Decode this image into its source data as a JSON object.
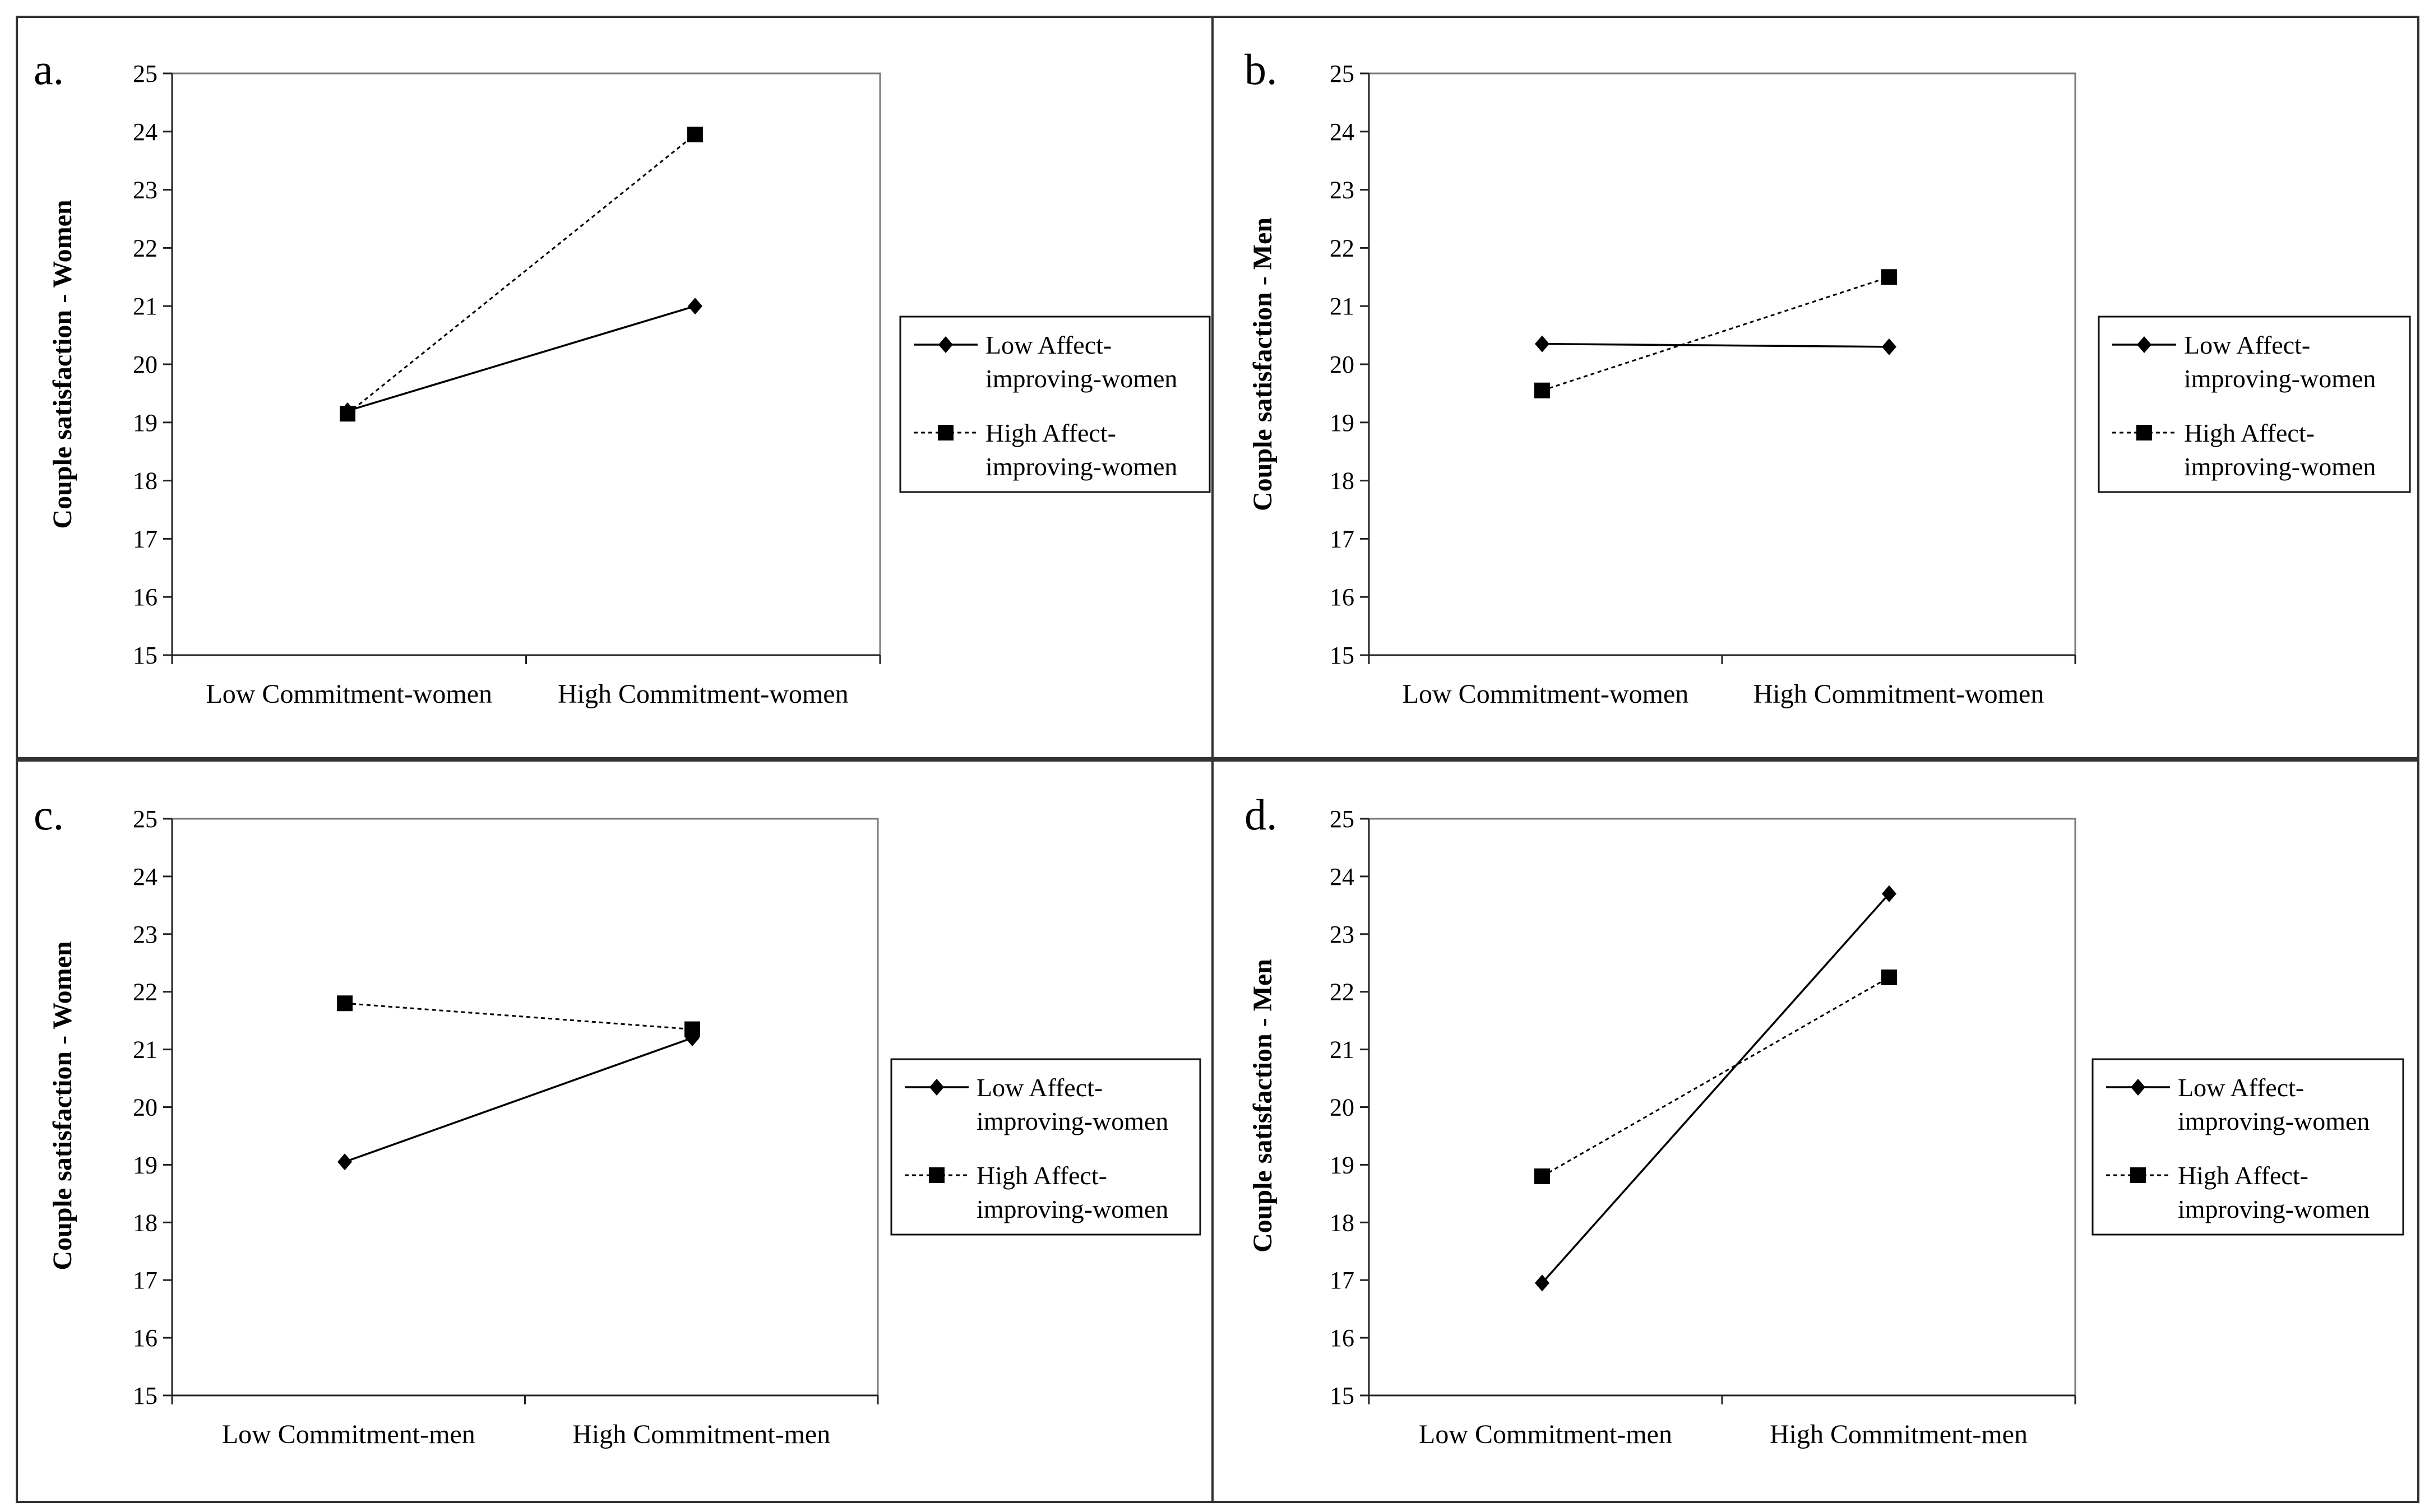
{
  "figure": {
    "chart_data": [
      {
        "type": "line",
        "panel_label": "a.",
        "categories": [
          "Low Commitment-women",
          "High Commitment-women"
        ],
        "ylabel": "Couple satisfaction - Women",
        "xlabel": "",
        "ylim": [
          15,
          25
        ],
        "yticks": [
          15,
          16,
          17,
          18,
          19,
          20,
          21,
          22,
          23,
          24,
          25
        ],
        "series": [
          {
            "name": "Low Affect-improving-women",
            "legend_lines": [
              "Low Affect-",
              "improving-women"
            ],
            "style": "solid",
            "marker": "diamond",
            "values": [
              19.2,
              21.0
            ]
          },
          {
            "name": "High Affect-improving-women",
            "legend_lines": [
              "High Affect-",
              "improving-women"
            ],
            "style": "dotted",
            "marker": "square",
            "values": [
              19.15,
              23.95
            ]
          }
        ]
      },
      {
        "type": "line",
        "panel_label": "b.",
        "categories": [
          "Low Commitment-women",
          "High Commitment-women"
        ],
        "ylabel": "Couple satisfaction - Men",
        "xlabel": "",
        "ylim": [
          15,
          25
        ],
        "yticks": [
          15,
          16,
          17,
          18,
          19,
          20,
          21,
          22,
          23,
          24,
          25
        ],
        "series": [
          {
            "name": "Low Affect-improving-women",
            "legend_lines": [
              "Low Affect-",
              "improving-women"
            ],
            "style": "solid",
            "marker": "diamond",
            "values": [
              20.35,
              20.3
            ]
          },
          {
            "name": "High Affect-improving-women",
            "legend_lines": [
              "High Affect-",
              "improving-women"
            ],
            "style": "dotted",
            "marker": "square",
            "values": [
              19.55,
              21.5
            ]
          }
        ]
      },
      {
        "type": "line",
        "panel_label": "c.",
        "categories": [
          "Low Commitment-men",
          "High Commitment-men"
        ],
        "ylabel": "Couple satisfaction - Women",
        "xlabel": "",
        "ylim": [
          15,
          25
        ],
        "yticks": [
          15,
          16,
          17,
          18,
          19,
          20,
          21,
          22,
          23,
          24,
          25
        ],
        "series": [
          {
            "name": "Low Affect-improving-women",
            "legend_lines": [
              "Low Affect-",
              "improving-women"
            ],
            "style": "solid",
            "marker": "diamond",
            "values": [
              19.05,
              21.2
            ]
          },
          {
            "name": "High Affect-improving-women",
            "legend_lines": [
              "High Affect-",
              "improving-women"
            ],
            "style": "dotted",
            "marker": "square",
            "values": [
              21.8,
              21.35
            ]
          }
        ]
      },
      {
        "type": "line",
        "panel_label": "d.",
        "categories": [
          "Low Commitment-men",
          "High Commitment-men"
        ],
        "ylabel": "Couple satisfaction - Men",
        "xlabel": "",
        "ylim": [
          15,
          25
        ],
        "yticks": [
          15,
          16,
          17,
          18,
          19,
          20,
          21,
          22,
          23,
          24,
          25
        ],
        "series": [
          {
            "name": "Low Affect-improving-women",
            "legend_lines": [
              "Low Affect-",
              "improving-women"
            ],
            "style": "solid",
            "marker": "diamond",
            "values": [
              16.95,
              23.7
            ]
          },
          {
            "name": "High Affect-improving-women",
            "legend_lines": [
              "High Affect-",
              "improving-women"
            ],
            "style": "dotted",
            "marker": "square",
            "values": [
              18.8,
              22.25
            ]
          }
        ]
      }
    ]
  }
}
